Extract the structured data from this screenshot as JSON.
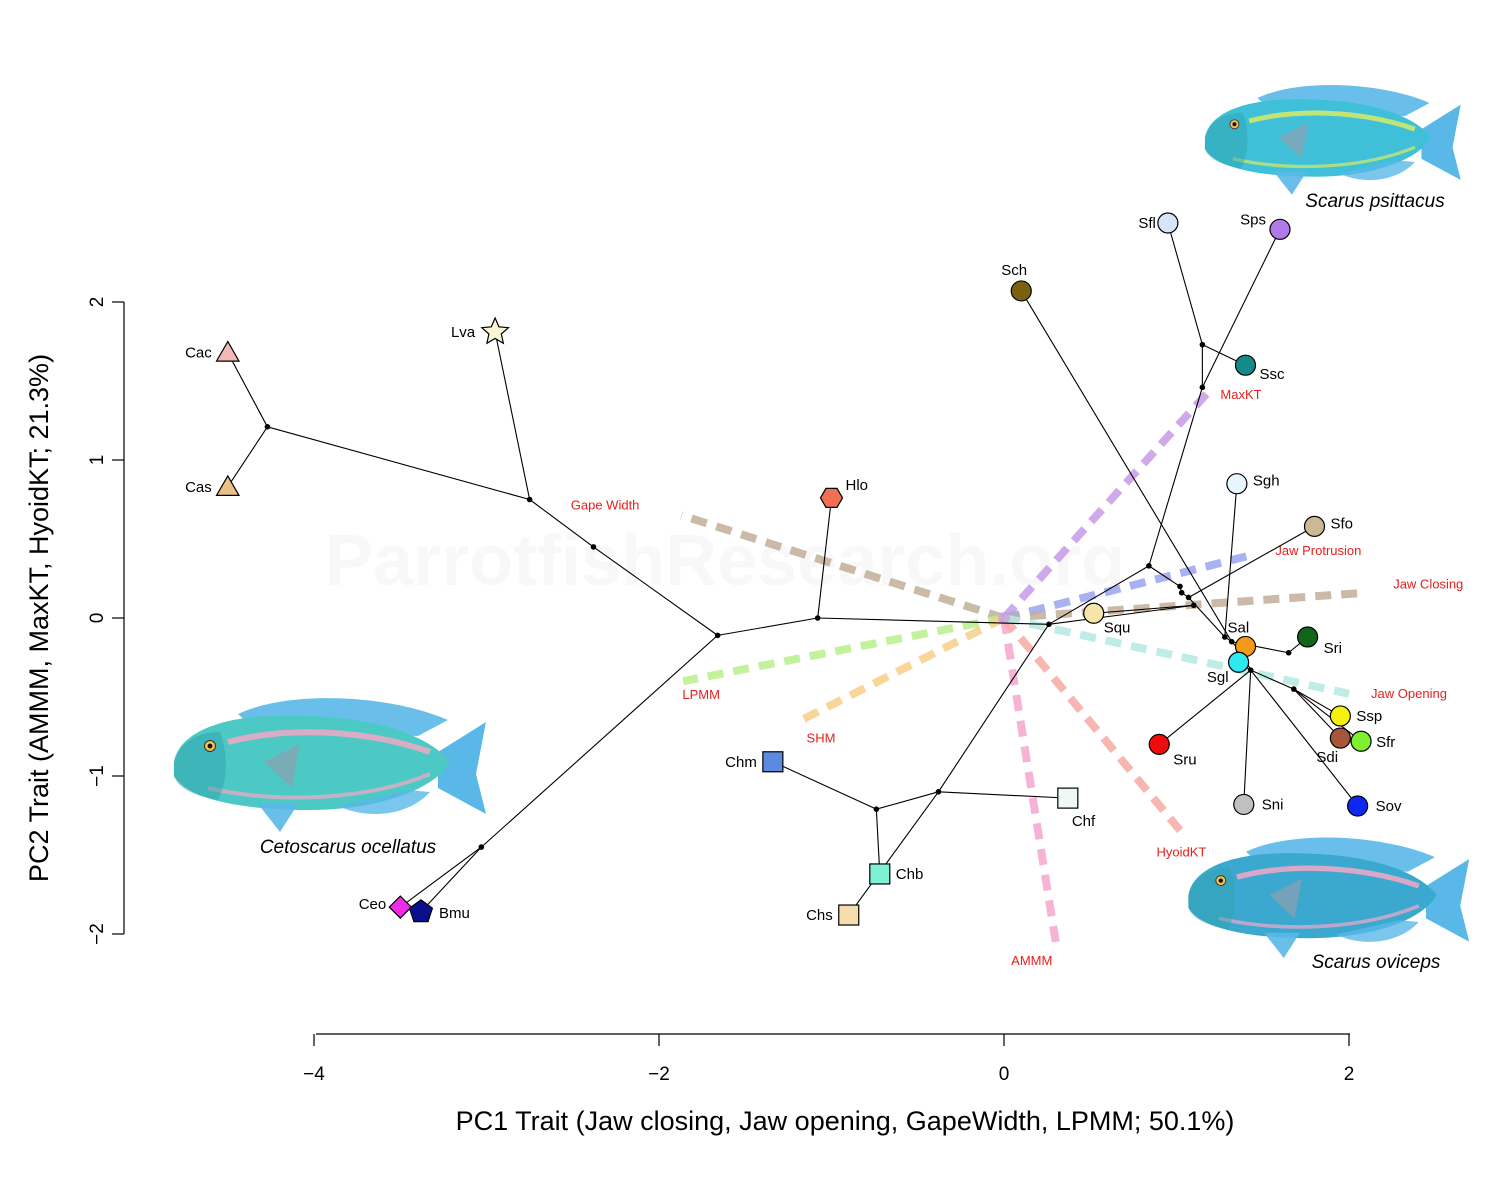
{
  "watermark": "ParrotfishResearch.org",
  "fish_illustrations": [
    {
      "id": "ceto",
      "caption": "Cetoscarus ocellatus",
      "icon": "parrotfish-illustration",
      "body": "#4cc9c4",
      "fin": "#5ab8e8",
      "accent": "#f3a8c7"
    },
    {
      "id": "psit",
      "caption": "Scarus psittacus",
      "icon": "parrotfish-illustration",
      "body": "#3fc0d8",
      "fin": "#5ab8e8",
      "accent": "#d7ea66"
    },
    {
      "id": "ovi",
      "caption": "Scarus oviceps",
      "icon": "parrotfish-illustration",
      "body": "#3ba9cf",
      "fin": "#5ab8e8",
      "accent": "#f3a8c7"
    }
  ],
  "chart_data": {
    "type": "scatter",
    "title": "",
    "xlabel": "PC1 Trait (Jaw closing, Jaw opening, GapeWidth, LPMM; 50.1%)",
    "ylabel": "PC2 Trait (AMMM, MaxKT, HyoidKT; 21.3%)",
    "xlim": [
      -4,
      2
    ],
    "ylim": [
      -2,
      2
    ],
    "xticks": [
      -4,
      -2,
      0,
      2
    ],
    "yticks": [
      -2,
      -1,
      0,
      1,
      2
    ],
    "xtick_labels": [
      "−4",
      "−2",
      "0",
      "2"
    ],
    "ytick_labels": [
      "−2",
      "−1",
      "0",
      "1",
      "2"
    ],
    "points": [
      {
        "label": "Cac",
        "x": -4.5,
        "y": 1.68,
        "shape": "triangle",
        "color": "#f4b8b8"
      },
      {
        "label": "Cas",
        "x": -4.5,
        "y": 0.83,
        "shape": "triangle",
        "color": "#e8c285"
      },
      {
        "label": "Lva",
        "x": -2.95,
        "y": 1.81,
        "shape": "star",
        "color": "#fbf6d4"
      },
      {
        "label": "Hlo",
        "x": -1.0,
        "y": 0.76,
        "shape": "hexagon",
        "color": "#f07055"
      },
      {
        "label": "Ceo",
        "x": -3.5,
        "y": -1.83,
        "shape": "diamond",
        "color": "#ee2ce8"
      },
      {
        "label": "Bmu",
        "x": -3.38,
        "y": -1.86,
        "shape": "pentagon",
        "color": "#0a0f8c"
      },
      {
        "label": "Chm",
        "x": -1.34,
        "y": -0.91,
        "shape": "square",
        "color": "#5b8be0"
      },
      {
        "label": "Chb",
        "x": -0.72,
        "y": -1.62,
        "shape": "square",
        "color": "#7ef0d6"
      },
      {
        "label": "Chs",
        "x": -0.9,
        "y": -1.88,
        "shape": "square",
        "color": "#f5dcae"
      },
      {
        "label": "Chf",
        "x": 0.37,
        "y": -1.14,
        "shape": "square",
        "color": "#eef8f6"
      },
      {
        "label": "Sch",
        "x": 0.1,
        "y": 2.07,
        "shape": "circle",
        "color": "#7a6110"
      },
      {
        "label": "Sfl",
        "x": 0.95,
        "y": 2.5,
        "shape": "circle",
        "color": "#d5e6fa"
      },
      {
        "label": "Sps",
        "x": 1.6,
        "y": 2.46,
        "shape": "circle",
        "color": "#b07ae8"
      },
      {
        "label": "Ssc",
        "x": 1.4,
        "y": 1.6,
        "shape": "circle",
        "color": "#138a86"
      },
      {
        "label": "Sgh",
        "x": 1.35,
        "y": 0.85,
        "shape": "circle",
        "color": "#e6f6fc"
      },
      {
        "label": "Sfo",
        "x": 1.8,
        "y": 0.58,
        "shape": "circle",
        "color": "#cdb896"
      },
      {
        "label": "Squ",
        "x": 0.52,
        "y": 0.03,
        "shape": "circle",
        "color": "#f5e6a8"
      },
      {
        "label": "Sal",
        "x": 1.4,
        "y": -0.18,
        "shape": "circle",
        "color": "#f59a18"
      },
      {
        "label": "Sri",
        "x": 1.76,
        "y": -0.12,
        "shape": "circle",
        "color": "#10661a"
      },
      {
        "label": "Sgl",
        "x": 1.36,
        "y": -0.28,
        "shape": "circle",
        "color": "#2fe8f0"
      },
      {
        "label": "Ssp",
        "x": 1.95,
        "y": -0.62,
        "shape": "circle",
        "color": "#f5f00c"
      },
      {
        "label": "Sdi",
        "x": 1.95,
        "y": -0.76,
        "shape": "circle",
        "color": "#a8563a"
      },
      {
        "label": "Sfr",
        "x": 2.07,
        "y": -0.78,
        "shape": "circle",
        "color": "#7ef030"
      },
      {
        "label": "Sru",
        "x": 0.9,
        "y": -0.8,
        "shape": "circle",
        "color": "#f00c0c"
      },
      {
        "label": "Sni",
        "x": 1.39,
        "y": -1.18,
        "shape": "circle",
        "color": "#c0c0c0"
      },
      {
        "label": "Sov",
        "x": 2.05,
        "y": -1.19,
        "shape": "circle",
        "color": "#0d28f2"
      }
    ],
    "internal_nodes": [
      {
        "id": "n1",
        "x": -4.27,
        "y": 1.21
      },
      {
        "id": "n2",
        "x": -2.75,
        "y": 0.75
      },
      {
        "id": "n3",
        "x": -2.38,
        "y": 0.45
      },
      {
        "id": "n4",
        "x": -1.66,
        "y": -0.11
      },
      {
        "id": "n5",
        "x": -3.03,
        "y": -1.45
      },
      {
        "id": "n6",
        "x": -1.08,
        "y": 0.0
      },
      {
        "id": "n7",
        "x": 0.26,
        "y": -0.04
      },
      {
        "id": "n8",
        "x": -0.38,
        "y": -1.1
      },
      {
        "id": "n9",
        "x": -0.74,
        "y": -1.21
      },
      {
        "id": "n10",
        "x": 0.84,
        "y": 0.33
      },
      {
        "id": "n11",
        "x": 1.02,
        "y": 0.2
      },
      {
        "id": "n12",
        "x": 1.03,
        "y": 0.16
      },
      {
        "id": "n13",
        "x": 1.07,
        "y": 0.13
      },
      {
        "id": "n14",
        "x": 1.1,
        "y": 0.08
      },
      {
        "id": "n15",
        "x": 1.15,
        "y": 1.46
      },
      {
        "id": "n16",
        "x": 1.15,
        "y": 1.73
      },
      {
        "id": "n17",
        "x": 1.28,
        "y": -0.12
      },
      {
        "id": "n18",
        "x": 1.32,
        "y": -0.15
      },
      {
        "id": "n19",
        "x": 1.38,
        "y": -0.22
      },
      {
        "id": "n20",
        "x": 1.43,
        "y": -0.33
      },
      {
        "id": "n21",
        "x": 1.65,
        "y": -0.22
      },
      {
        "id": "n22",
        "x": 1.68,
        "y": -0.45
      }
    ],
    "edges": [
      [
        "n1",
        "Cac"
      ],
      [
        "n1",
        "Cas"
      ],
      [
        "n1",
        "n2"
      ],
      [
        "n2",
        "Lva"
      ],
      [
        "n2",
        "n3"
      ],
      [
        "n3",
        "n4"
      ],
      [
        "n4",
        "n5"
      ],
      [
        "n5",
        "Ceo"
      ],
      [
        "n5",
        "Bmu"
      ],
      [
        "n4",
        "n6"
      ],
      [
        "n6",
        "Hlo"
      ],
      [
        "n6",
        "n7"
      ],
      [
        "n7",
        "n8"
      ],
      [
        "n8",
        "Chf"
      ],
      [
        "n8",
        "n9"
      ],
      [
        "n9",
        "Chm"
      ],
      [
        "n9",
        "Chb"
      ],
      [
        "n8",
        "Chs"
      ],
      [
        "n7",
        "n10"
      ],
      [
        "n7",
        "n14"
      ],
      [
        "n14",
        "Squ"
      ],
      [
        "n10",
        "n11"
      ],
      [
        "n11",
        "n12"
      ],
      [
        "n12",
        "n13"
      ],
      [
        "n13",
        "n17"
      ],
      [
        "n17",
        "n18"
      ],
      [
        "n18",
        "n19"
      ],
      [
        "n19",
        "n20"
      ],
      [
        "n10",
        "n15"
      ],
      [
        "n15",
        "n16"
      ],
      [
        "n16",
        "Sfl"
      ],
      [
        "n16",
        "Ssc"
      ],
      [
        "n15",
        "Sps"
      ],
      [
        "Sch",
        "n18"
      ],
      [
        "n13",
        "Sfo"
      ],
      [
        "n17",
        "Sgh"
      ],
      [
        "n19",
        "Sal"
      ],
      [
        "n21",
        "Sri"
      ],
      [
        "n18",
        "n21"
      ],
      [
        "n20",
        "Sgl"
      ],
      [
        "n20",
        "Sru"
      ],
      [
        "n20",
        "Sni"
      ],
      [
        "n20",
        "n22"
      ],
      [
        "n22",
        "Ssp"
      ],
      [
        "n22",
        "Sdi"
      ],
      [
        "n22",
        "Sfr"
      ],
      [
        "n20",
        "Sov"
      ]
    ],
    "trait_vectors": [
      {
        "label": "Gape Width",
        "x": -1.87,
        "y": 0.65,
        "color": "#c3ae9a"
      },
      {
        "label": "LPMM",
        "x": -1.86,
        "y": -0.4,
        "color": "#b8f08a"
      },
      {
        "label": "SHM",
        "x": -1.2,
        "y": -0.66,
        "color": "#f7cf88"
      },
      {
        "label": "AMMM",
        "x": 0.3,
        "y": -2.05,
        "color": "#f6a6cf"
      },
      {
        "label": "HyoidKT",
        "x": 1.04,
        "y": -1.37,
        "color": "#f7aaa4"
      },
      {
        "label": "MaxKT",
        "x": 1.2,
        "y": 1.45,
        "color": "#c89be8"
      },
      {
        "label": "Jaw Protrusion",
        "x": 1.44,
        "y": 0.4,
        "color": "#9ba4f0"
      },
      {
        "label": "Jaw Closing",
        "x": 2.1,
        "y": 0.16,
        "color": "#c3ae9a"
      },
      {
        "label": "Jaw Opening",
        "x": 2.0,
        "y": -0.48,
        "color": "#b4eae2"
      }
    ]
  }
}
